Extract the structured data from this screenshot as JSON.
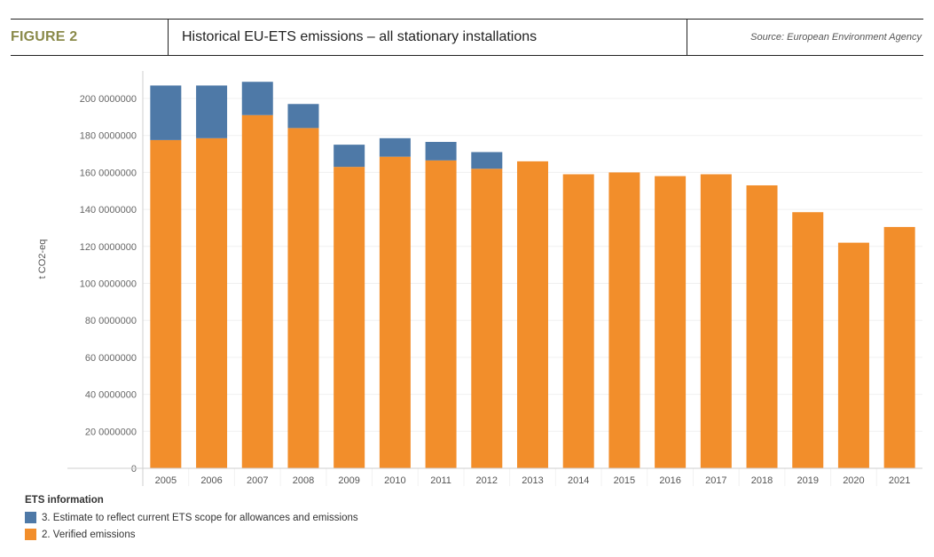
{
  "header": {
    "figure_label": "FIGURE 2",
    "title": "Historical EU-ETS emissions – all stationary installations",
    "source": "Source: European Environment Agency"
  },
  "colors": {
    "estimate": "#4e79a7",
    "verified": "#f28e2b",
    "figure_label": "#8a8a4a"
  },
  "chart_data": {
    "type": "bar",
    "stacked": true,
    "title": "Historical EU-ETS emissions – all stationary installations",
    "xlabel": "",
    "ylabel": "t CO2-eq",
    "ylim": [
      0,
      210000000
    ],
    "grid": true,
    "yticks": [
      0,
      20000000,
      40000000,
      60000000,
      80000000,
      100000000,
      120000000,
      140000000,
      160000000,
      180000000,
      200000000
    ],
    "ytick_labels": [
      "0",
      "20 0000000",
      "40 0000000",
      "60 0000000",
      "80 0000000",
      "100 0000000",
      "120 0000000",
      "140 0000000",
      "160 0000000",
      "180 0000000",
      "200 0000000"
    ],
    "categories": [
      "2005",
      "2006",
      "2007",
      "2008",
      "2009",
      "2010",
      "2011",
      "2012",
      "2013",
      "2014",
      "2015",
      "2016",
      "2017",
      "2018",
      "2019",
      "2020",
      "2021"
    ],
    "series": [
      {
        "name": "2. Verified emissions",
        "color": "#f28e2b",
        "values": [
          177500000,
          178500000,
          191000000,
          184000000,
          163000000,
          168500000,
          166500000,
          162000000,
          166000000,
          159000000,
          160000000,
          158000000,
          159000000,
          153000000,
          138500000,
          122000000,
          130500000
        ]
      },
      {
        "name": "3. Estimate to reflect current ETS scope for allowances and emissions",
        "color": "#4e79a7",
        "values": [
          29500000,
          28500000,
          18000000,
          13000000,
          12000000,
          10000000,
          10000000,
          9000000,
          0,
          0,
          0,
          0,
          0,
          0,
          0,
          0,
          0
        ]
      }
    ],
    "legend": {
      "title": "ETS information",
      "placement": "bottom-left",
      "entries": [
        {
          "label": "3. Estimate to reflect current ETS scope for allowances and emissions",
          "color": "#4e79a7"
        },
        {
          "label": "2. Verified emissions",
          "color": "#f28e2b"
        }
      ]
    }
  }
}
